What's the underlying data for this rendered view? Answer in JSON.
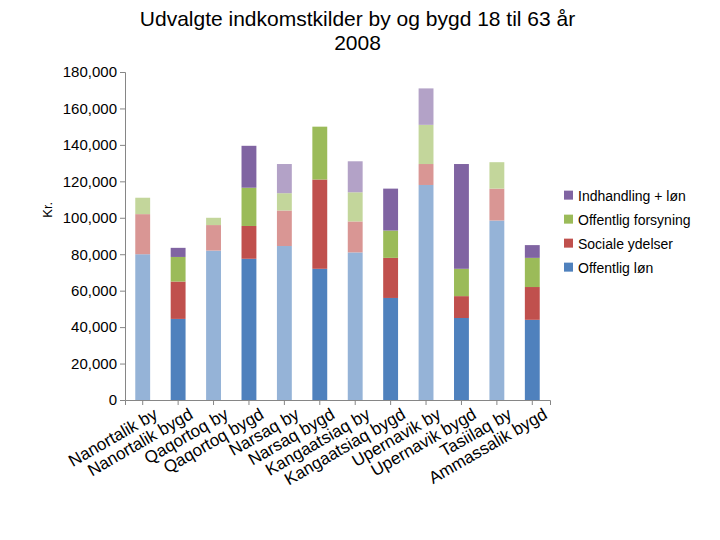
{
  "chart_data": {
    "type": "bar",
    "stacked": true,
    "title": "Udvalgte indkomstkilder by og bygd 18 til 63 år 2008",
    "y_label": "Kr.",
    "categories": [
      "Nanortalik by",
      "Nanortalik bygd",
      "Qaqortoq by",
      "Qaqortoq bygd",
      "Narsaq by",
      "Narsaq bygd",
      "Kangaatsiaq by",
      "Kangaatsiaq bygd",
      "Upernavik by",
      "Upernavik bygd",
      "Tasiilaq by",
      "Ammassalik bygd"
    ],
    "series": [
      {
        "name": "Offentlig løn",
        "color": "#4f81bd",
        "colors": [
          "#95b3d7",
          "#4f81bd",
          "#95b3d7",
          "#4f81bd",
          "#95b3d7",
          "#4f81bd",
          "#95b3d7",
          "#4f81bd",
          "#95b3d7",
          "#4f81bd",
          "#95b3d7",
          "#4f81bd"
        ],
        "values": [
          80000,
          44500,
          82000,
          77500,
          84500,
          72000,
          81000,
          56000,
          118000,
          45000,
          98500,
          44000
        ]
      },
      {
        "name": "Sociale ydelser",
        "color": "#c0504d",
        "colors": [
          "#d99694",
          "#c0504d",
          "#d99694",
          "#c0504d",
          "#d99694",
          "#c0504d",
          "#d99694",
          "#c0504d",
          "#d99694",
          "#c0504d",
          "#d99694",
          "#c0504d"
        ],
        "values": [
          22000,
          20500,
          14000,
          18000,
          19500,
          49000,
          17000,
          22000,
          11500,
          12000,
          17500,
          18000
        ]
      },
      {
        "name": "Offentlig forsyning",
        "color": "#9bbb59",
        "colors": [
          "#c3d69b",
          "#9bbb59",
          "#c3d69b",
          "#9bbb59",
          "#c3d69b",
          "#9bbb59",
          "#c3d69b",
          "#9bbb59",
          "#c3d69b",
          "#9bbb59",
          "#c3d69b",
          "#9bbb59"
        ],
        "values": [
          9000,
          13500,
          4000,
          21000,
          9500,
          29000,
          16000,
          15000,
          21500,
          15000,
          14500,
          16000
        ]
      },
      {
        "name": "Indhandling + løn",
        "color": "#8064a2",
        "colors": [
          "#b3a2c7",
          "#8064a2",
          "#b3a2c7",
          "#8064a2",
          "#b3a2c7",
          "#8064a2",
          "#b3a2c7",
          "#8064a2",
          "#b3a2c7",
          "#8064a2",
          "#b3a2c7",
          "#8064a2"
        ],
        "values": [
          0,
          5000,
          0,
          23000,
          16000,
          0,
          17000,
          23000,
          20000,
          57500,
          0,
          7000
        ]
      }
    ],
    "ylim": [
      0,
      180000
    ],
    "yticks": [
      0,
      {
        "value": 20000,
        "label": "20,000"
      },
      {
        "value": 40000,
        "label": "40,000"
      },
      {
        "value": 60000,
        "label": "60,000"
      },
      {
        "value": 80000,
        "label": "80,000"
      },
      {
        "value": 100000,
        "label": "100,000"
      },
      {
        "value": 120000,
        "label": "120,000"
      },
      {
        "value": 140000,
        "label": "140,000"
      },
      {
        "value": 160000,
        "label": "160,000"
      },
      {
        "value": 180000,
        "label": "180,000"
      }
    ],
    "grid": false,
    "legend": "right"
  }
}
